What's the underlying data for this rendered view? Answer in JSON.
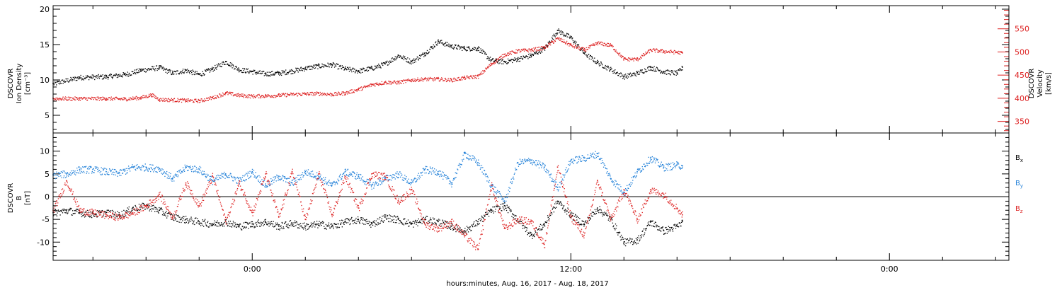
{
  "chart_data": [
    {
      "type": "scatter",
      "panel": "density-velocity",
      "x_unit": "hours relative to 2017-08-16 00:00",
      "xlim": [
        -7.5,
        28.5
      ],
      "ylabel_left": [
        "DSCOVR",
        "Ion Density",
        "[cm⁻³]"
      ],
      "ylabel_right": [
        "DSCOVR",
        "Velocity",
        "[km/s]"
      ],
      "ylim_left": [
        2.5,
        20.5
      ],
      "ylim_right": [
        325,
        600
      ],
      "yticks_left": [
        5,
        10,
        15,
        20
      ],
      "yticks_right": [
        350,
        400,
        450,
        500,
        550
      ],
      "grid": false,
      "series": [
        {
          "axis": "left",
          "color": "#000000",
          "points": [
            [
              -7.5,
              9.5
            ],
            [
              -6.5,
              10.4
            ],
            [
              -5.5,
              10.5
            ],
            [
              -4.8,
              10.8
            ],
            [
              -4.2,
              11.4
            ],
            [
              -3.5,
              11.8
            ],
            [
              -3.0,
              11.0
            ],
            [
              -2.5,
              11.4
            ],
            [
              -2.0,
              10.8
            ],
            [
              -1.5,
              11.6
            ],
            [
              -1.0,
              12.6
            ],
            [
              -0.5,
              11.5
            ],
            [
              0,
              11.2
            ],
            [
              0.5,
              10.9
            ],
            [
              1.0,
              11.0
            ],
            [
              1.5,
              11.3
            ],
            [
              2.0,
              11.7
            ],
            [
              2.5,
              12.0
            ],
            [
              3.0,
              12.2
            ],
            [
              3.5,
              11.6
            ],
            [
              4.0,
              11.3
            ],
            [
              4.5,
              11.7
            ],
            [
              5.0,
              12.3
            ],
            [
              5.5,
              13.5
            ],
            [
              6.0,
              12.6
            ],
            [
              6.5,
              13.8
            ],
            [
              7.0,
              15.5
            ],
            [
              7.5,
              14.8
            ],
            [
              8.0,
              14.5
            ],
            [
              8.5,
              14.5
            ],
            [
              9.0,
              12.8
            ],
            [
              9.5,
              12.6
            ],
            [
              10.0,
              13.0
            ],
            [
              10.5,
              13.5
            ],
            [
              11.0,
              14.5
            ],
            [
              11.5,
              17.0
            ],
            [
              12.0,
              16.0
            ],
            [
              12.5,
              13.8
            ],
            [
              13.0,
              12.5
            ],
            [
              13.5,
              11.5
            ],
            [
              14.0,
              10.5
            ],
            [
              14.5,
              11.0
            ],
            [
              15.0,
              11.8
            ],
            [
              15.5,
              11.2
            ],
            [
              16.0,
              11.0
            ],
            [
              16.2,
              11.8
            ]
          ]
        },
        {
          "axis": "right",
          "color": "#dd2222",
          "points": [
            [
              -7.5,
              400
            ],
            [
              -6.5,
              400
            ],
            [
              -5.5,
              400
            ],
            [
              -4.8,
              399
            ],
            [
              -4.2,
              402
            ],
            [
              -3.8,
              408
            ],
            [
              -3.5,
              398
            ],
            [
              -3.0,
              397
            ],
            [
              -2.5,
              396
            ],
            [
              -2.0,
              395
            ],
            [
              -1.5,
              402
            ],
            [
              -1.0,
              412
            ],
            [
              -0.5,
              407
            ],
            [
              0,
              405
            ],
            [
              0.5,
              406
            ],
            [
              1.0,
              407
            ],
            [
              1.5,
              409
            ],
            [
              2.0,
              410
            ],
            [
              2.5,
              411
            ],
            [
              3.0,
              409
            ],
            [
              3.5,
              412
            ],
            [
              4.0,
              420
            ],
            [
              4.5,
              430
            ],
            [
              5.0,
              435
            ],
            [
              5.5,
              435
            ],
            [
              6.0,
              440
            ],
            [
              6.5,
              442
            ],
            [
              7.0,
              442
            ],
            [
              7.5,
              440
            ],
            [
              8.0,
              445
            ],
            [
              8.5,
              448
            ],
            [
              9.0,
              475
            ],
            [
              9.5,
              495
            ],
            [
              10.0,
              503
            ],
            [
              10.5,
              505
            ],
            [
              11.0,
              510
            ],
            [
              11.5,
              530
            ],
            [
              12.0,
              515
            ],
            [
              12.5,
              505
            ],
            [
              13.0,
              520
            ],
            [
              13.5,
              515
            ],
            [
              14.0,
              485
            ],
            [
              14.5,
              485
            ],
            [
              15.0,
              505
            ],
            [
              15.5,
              502
            ],
            [
              16.0,
              500
            ],
            [
              16.2,
              498
            ]
          ]
        }
      ]
    },
    {
      "type": "scatter",
      "panel": "magnetic-field",
      "x_unit": "hours relative to 2017-08-16 00:00",
      "xlim": [
        -7.5,
        28.5
      ],
      "ylabel": [
        "DSCOVR",
        "B",
        "[nT]"
      ],
      "ylim": [
        -14,
        14
      ],
      "yticks": [
        -10,
        -5,
        0,
        5,
        10
      ],
      "zero_line": true,
      "grid": false,
      "series": [
        {
          "name": "Bx",
          "color": "#000000",
          "points": [
            [
              -7.5,
              -3.5
            ],
            [
              -7.0,
              -3.0
            ],
            [
              -6.5,
              -3.5
            ],
            [
              -6.0,
              -3.8
            ],
            [
              -5.5,
              -3.5
            ],
            [
              -5.0,
              -4.0
            ],
            [
              -4.5,
              -2.5
            ],
            [
              -4.0,
              -2.0
            ],
            [
              -3.5,
              -3.0
            ],
            [
              -3.0,
              -4.5
            ],
            [
              -2.5,
              -5.0
            ],
            [
              -2.0,
              -5.5
            ],
            [
              -1.5,
              -6.0
            ],
            [
              -1.0,
              -5.5
            ],
            [
              -0.5,
              -6.5
            ],
            [
              0,
              -6.0
            ],
            [
              0.5,
              -5.5
            ],
            [
              1.0,
              -6.5
            ],
            [
              1.5,
              -5.8
            ],
            [
              2.0,
              -6.5
            ],
            [
              2.5,
              -6.0
            ],
            [
              3.0,
              -6.5
            ],
            [
              3.5,
              -5.5
            ],
            [
              4.0,
              -5.0
            ],
            [
              4.5,
              -6.0
            ],
            [
              5.0,
              -4.5
            ],
            [
              5.5,
              -5.0
            ],
            [
              6.0,
              -6.0
            ],
            [
              6.5,
              -5.0
            ],
            [
              7.0,
              -5.5
            ],
            [
              7.5,
              -6.5
            ],
            [
              8.0,
              -7.5
            ],
            [
              8.5,
              -5.5
            ],
            [
              9.0,
              -3.0
            ],
            [
              9.5,
              -2.0
            ],
            [
              10.0,
              -5.0
            ],
            [
              10.5,
              -8.5
            ],
            [
              11.0,
              -6.0
            ],
            [
              11.5,
              -1.0
            ],
            [
              12.0,
              -4.0
            ],
            [
              12.5,
              -6.0
            ],
            [
              13.0,
              -2.5
            ],
            [
              13.5,
              -5.0
            ],
            [
              14.0,
              -10.0
            ],
            [
              14.5,
              -9.5
            ],
            [
              15.0,
              -5.5
            ],
            [
              15.5,
              -7.5
            ],
            [
              16.0,
              -6.5
            ],
            [
              16.2,
              -5.5
            ]
          ]
        },
        {
          "name": "By",
          "color": "#1f7fd8",
          "points": [
            [
              -7.5,
              4.8
            ],
            [
              -7.0,
              5.0
            ],
            [
              -6.5,
              6.0
            ],
            [
              -6.0,
              6.0
            ],
            [
              -5.5,
              5.5
            ],
            [
              -5.0,
              5.2
            ],
            [
              -4.5,
              6.5
            ],
            [
              -4.0,
              6.5
            ],
            [
              -3.5,
              6.2
            ],
            [
              -3.0,
              4.0
            ],
            [
              -2.5,
              6.5
            ],
            [
              -2.0,
              6.0
            ],
            [
              -1.5,
              3.5
            ],
            [
              -1.0,
              5.0
            ],
            [
              -0.5,
              3.5
            ],
            [
              0,
              5.5
            ],
            [
              0.5,
              2.5
            ],
            [
              1.0,
              4.5
            ],
            [
              1.5,
              3.0
            ],
            [
              2.0,
              5.5
            ],
            [
              2.5,
              4.5
            ],
            [
              3.0,
              2.5
            ],
            [
              3.5,
              5.5
            ],
            [
              4.0,
              4.5
            ],
            [
              4.5,
              2.5
            ],
            [
              5.0,
              4.0
            ],
            [
              5.5,
              5.0
            ],
            [
              6.0,
              3.0
            ],
            [
              6.5,
              6.0
            ],
            [
              7.0,
              5.5
            ],
            [
              7.5,
              3.0
            ],
            [
              8.0,
              9.5
            ],
            [
              8.5,
              7.5
            ],
            [
              9.0,
              2.5
            ],
            [
              9.5,
              -1.0
            ],
            [
              10.0,
              7.5
            ],
            [
              10.5,
              8.0
            ],
            [
              11.0,
              6.5
            ],
            [
              11.5,
              2.0
            ],
            [
              12.0,
              8.0
            ],
            [
              12.5,
              8.5
            ],
            [
              13.0,
              9.5
            ],
            [
              13.5,
              4.0
            ],
            [
              14.0,
              1.0
            ],
            [
              14.5,
              5.5
            ],
            [
              15.0,
              8.5
            ],
            [
              15.5,
              6.5
            ],
            [
              16.0,
              7.0
            ],
            [
              16.2,
              6.8
            ]
          ]
        },
        {
          "name": "Bz",
          "color": "#dd2222",
          "points": [
            [
              -7.5,
              -3.0
            ],
            [
              -7.0,
              3.5
            ],
            [
              -6.5,
              -3.0
            ],
            [
              -6.0,
              -3.5
            ],
            [
              -5.5,
              -4.0
            ],
            [
              -5.0,
              -4.5
            ],
            [
              -4.5,
              -3.5
            ],
            [
              -4.0,
              -2.0
            ],
            [
              -3.5,
              0.5
            ],
            [
              -3.0,
              -4.5
            ],
            [
              -2.5,
              3.0
            ],
            [
              -2.0,
              -2.0
            ],
            [
              -1.5,
              4.5
            ],
            [
              -1.0,
              -5.5
            ],
            [
              -0.5,
              3.0
            ],
            [
              0,
              -3.5
            ],
            [
              0.5,
              5.0
            ],
            [
              1.0,
              -4.5
            ],
            [
              1.5,
              5.5
            ],
            [
              2.0,
              -5.0
            ],
            [
              2.5,
              5.0
            ],
            [
              3.0,
              -4.0
            ],
            [
              3.5,
              4.5
            ],
            [
              4.0,
              -2.5
            ],
            [
              4.5,
              5.0
            ],
            [
              5.0,
              4.5
            ],
            [
              5.5,
              -1.0
            ],
            [
              6.0,
              1.5
            ],
            [
              6.5,
              -6.0
            ],
            [
              7.0,
              -7.0
            ],
            [
              7.5,
              -5.5
            ],
            [
              8.0,
              -8.5
            ],
            [
              8.5,
              -11.5
            ],
            [
              9.0,
              2.5
            ],
            [
              9.5,
              -7.0
            ],
            [
              10.0,
              -5.0
            ],
            [
              10.5,
              -5.5
            ],
            [
              11.0,
              -10.5
            ],
            [
              11.5,
              6.5
            ],
            [
              12.0,
              -4.5
            ],
            [
              12.5,
              -8.5
            ],
            [
              13.0,
              3.5
            ],
            [
              13.5,
              -5.0
            ],
            [
              14.0,
              1.5
            ],
            [
              14.5,
              -5.0
            ],
            [
              15.0,
              1.5
            ],
            [
              15.5,
              0.5
            ],
            [
              16.0,
              -2.5
            ],
            [
              16.2,
              -4.0
            ]
          ]
        }
      ]
    }
  ],
  "legend": {
    "bx": "B",
    "bx_sub": "x",
    "by": "B",
    "by_sub": "y",
    "bz": "B",
    "bz_sub": "z"
  },
  "xaxis": {
    "ticks": [
      {
        "t": 0,
        "label": "0:00"
      },
      {
        "t": 12,
        "label": "12:00"
      },
      {
        "t": 24,
        "label": "0:00"
      }
    ],
    "title": "hours:minutes, Aug. 16, 2017 - Aug. 18, 2017"
  },
  "colors": {
    "black": "#000000",
    "red": "#dd2222",
    "blue": "#1f7fd8"
  }
}
